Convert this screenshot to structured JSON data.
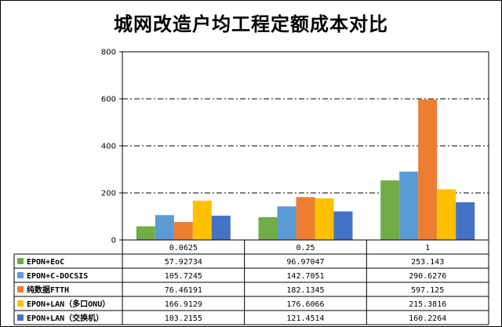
{
  "chart_data": {
    "type": "bar",
    "title": "城网改造户均工程定额成本对比",
    "categories": [
      "0.0625",
      "0.25",
      "1"
    ],
    "yticks": [
      "0",
      "200",
      "400",
      "600",
      "800"
    ],
    "ylim": [
      0,
      800
    ],
    "grid": "dash-dot horizontal",
    "legend": "data table below chart",
    "series": [
      {
        "name": "EPON+EoC",
        "color": "#70ad47",
        "values": [
          57.92734,
          96.97047,
          253.143
        ],
        "labels": [
          "57.92734",
          "96.97047",
          "253.143"
        ]
      },
      {
        "name": "EPON+C-DOCSIS",
        "color": "#5b9bd5",
        "values": [
          105.7245,
          142.7051,
          290.6276
        ],
        "labels": [
          "105.7245",
          "142.7051",
          "290.6276"
        ]
      },
      {
        "name": "纯数据FTTH",
        "color": "#ed7d31",
        "values": [
          76.46191,
          182.1345,
          597.125
        ],
        "labels": [
          "76.46191",
          "182.1345",
          "597.125"
        ]
      },
      {
        "name": "EPON+LAN（多口ONU）",
        "color": "#ffc000",
        "values": [
          166.9129,
          176.6066,
          215.3816
        ],
        "labels": [
          "166.9129",
          "176.6066",
          "215.3816"
        ]
      },
      {
        "name": "EPON+LAN（交换机）",
        "color": "#4472c4",
        "values": [
          103.2155,
          121.4514,
          160.2264
        ],
        "labels": [
          "103.2155",
          "121.4514",
          "160.2264"
        ]
      }
    ]
  }
}
